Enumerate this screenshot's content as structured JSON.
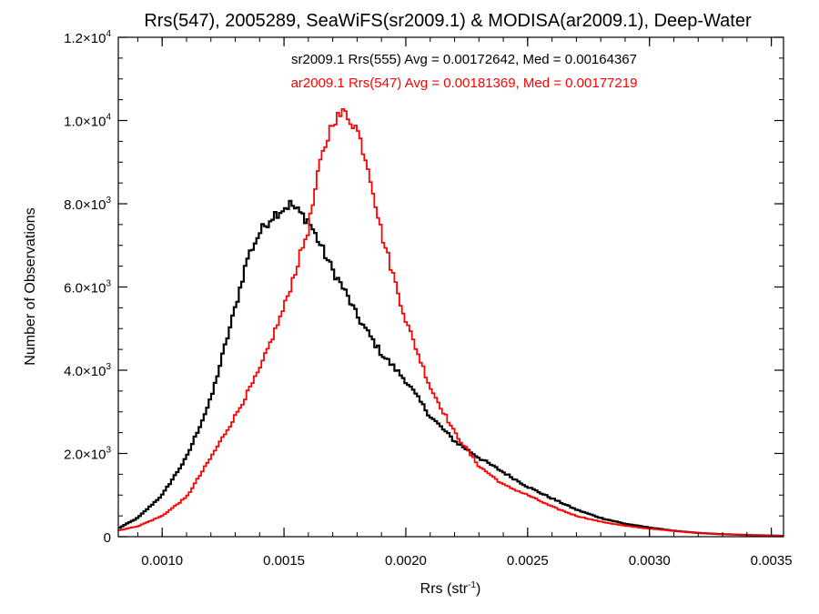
{
  "chart_data": {
    "type": "histogram-step",
    "title": "Rrs(547), 2005289, SeaWiFS(sr2009.1) & MODISA(ar2009.1), Deep-Water",
    "xlabel": "Rrs (str",
    "xlabel_sup": "-1",
    "xlabel_end": ")",
    "ylabel": "Number of Observations",
    "xlim": [
      0.00082,
      0.00355
    ],
    "ylim": [
      0,
      12000
    ],
    "xticks": [
      {
        "value": 0.001,
        "label": "0.0010"
      },
      {
        "value": 0.0015,
        "label": "0.0015"
      },
      {
        "value": 0.002,
        "label": "0.0020"
      },
      {
        "value": 0.0025,
        "label": "0.0025"
      },
      {
        "value": 0.003,
        "label": "0.0030"
      },
      {
        "value": 0.0035,
        "label": "0.0035"
      }
    ],
    "yticks": [
      {
        "value": 0,
        "mant": "0",
        "exp": ""
      },
      {
        "value": 2000,
        "mant": "2.0×10",
        "exp": "3"
      },
      {
        "value": 4000,
        "mant": "4.0×10",
        "exp": "3"
      },
      {
        "value": 6000,
        "mant": "6.0×10",
        "exp": "3"
      },
      {
        "value": 8000,
        "mant": "8.0×10",
        "exp": "3"
      },
      {
        "value": 10000,
        "mant": "1.0×10",
        "exp": "4"
      },
      {
        "value": 12000,
        "mant": "1.2×10",
        "exp": "4"
      }
    ],
    "series": [
      {
        "name": "sr2009.1 Rrs(555)",
        "color": "#000000",
        "stats_label": "sr2009.1 Rrs(555) Avg = 0.00172642, Med = 0.00164367",
        "x": [
          0.00082,
          0.0009,
          0.001,
          0.0011,
          0.0012,
          0.0013,
          0.00135,
          0.0014,
          0.00145,
          0.0015,
          0.00153,
          0.00155,
          0.0016,
          0.00165,
          0.0017,
          0.00175,
          0.0018,
          0.0019,
          0.002,
          0.0021,
          0.0022,
          0.0023,
          0.0024,
          0.0025,
          0.0026,
          0.0027,
          0.0028,
          0.0029,
          0.003,
          0.0031,
          0.0032,
          0.0033,
          0.0034,
          0.00355
        ],
        "y": [
          200,
          450,
          1000,
          1900,
          3300,
          5500,
          6700,
          7300,
          7700,
          7900,
          8000,
          7850,
          7600,
          7000,
          6400,
          5900,
          5300,
          4400,
          3750,
          2900,
          2300,
          1900,
          1550,
          1200,
          920,
          650,
          450,
          310,
          220,
          140,
          90,
          60,
          40,
          20
        ]
      },
      {
        "name": "ar2009.1 Rrs(547)",
        "color": "#ff0000",
        "stats_label": "ar2009.1 Rrs(547) Avg = 0.00181369, Med = 0.00177219",
        "x": [
          0.00082,
          0.0009,
          0.001,
          0.0011,
          0.0012,
          0.0013,
          0.0014,
          0.0015,
          0.0016,
          0.00165,
          0.0017,
          0.00175,
          0.0018,
          0.00185,
          0.0019,
          0.002,
          0.0021,
          0.0022,
          0.0023,
          0.0024,
          0.0025,
          0.0026,
          0.0027,
          0.0028,
          0.0029,
          0.003,
          0.0031,
          0.0032,
          0.0033,
          0.0034,
          0.00355
        ],
        "y": [
          150,
          250,
          500,
          950,
          1900,
          2900,
          4000,
          5500,
          7400,
          9000,
          10000,
          10200,
          9800,
          8800,
          7300,
          5200,
          3600,
          2500,
          1700,
          1250,
          1000,
          720,
          500,
          360,
          260,
          190,
          140,
          90,
          60,
          40,
          20
        ]
      }
    ]
  }
}
